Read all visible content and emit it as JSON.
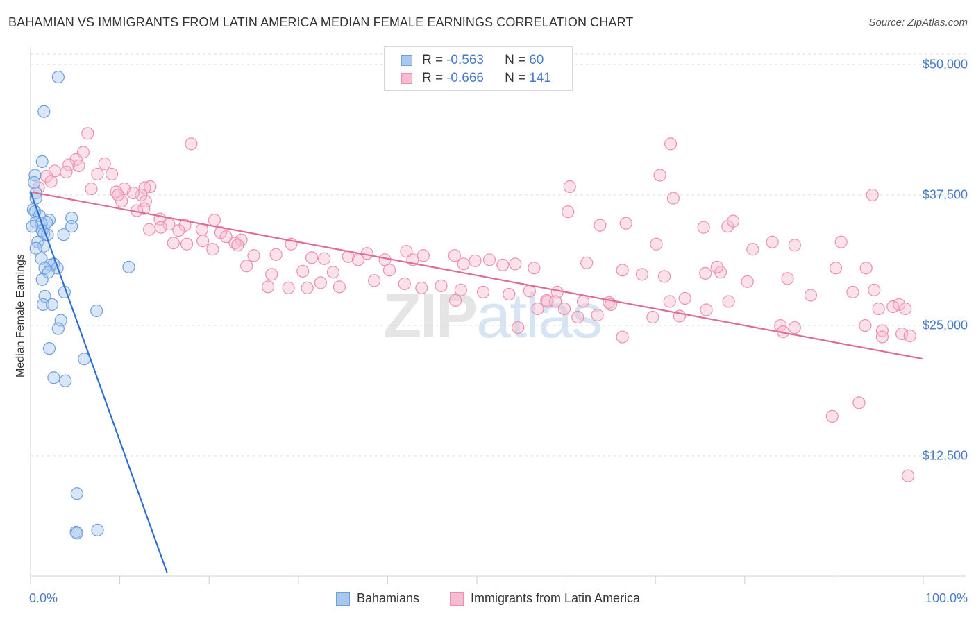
{
  "title": "BAHAMIAN VS IMMIGRANTS FROM LATIN AMERICA MEDIAN FEMALE EARNINGS CORRELATION CHART",
  "source": "Source: ZipAtlas.com",
  "watermark": {
    "zip": "ZIP",
    "atlas": "atlas"
  },
  "legend": {
    "series1": {
      "r_label": "R = ",
      "r_value": "-0.563",
      "n_label": "N = ",
      "n_value": "60"
    },
    "series2": {
      "r_label": "R = ",
      "r_value": "-0.666",
      "n_label": "N = ",
      "n_value": "141"
    }
  },
  "colors": {
    "blue_fill": "#a9c8f0",
    "blue_stroke": "#6d9fe0",
    "blue_line": "#2e6fd6",
    "pink_fill": "#f7bcd0",
    "pink_stroke": "#ee8fb0",
    "pink_line": "#e06b97",
    "tick_text": "#4a7cc8",
    "grid": "#dcdcdc"
  },
  "chart_data": {
    "type": "scatter",
    "title": "BAHAMIAN VS IMMIGRANTS FROM LATIN AMERICA MEDIAN FEMALE EARNINGS CORRELATION CHART",
    "xlabel": "",
    "ylabel": "Median Female Earnings",
    "xlim": [
      0,
      100
    ],
    "ylim": [
      1000,
      51000
    ],
    "x_tick_labels": [
      "0.0%",
      "100.0%"
    ],
    "y_ticks": [
      {
        "value": 12500,
        "label": "$12,500"
      },
      {
        "value": 25000,
        "label": "$25,000"
      },
      {
        "value": 37500,
        "label": "$37,500"
      },
      {
        "value": 50000,
        "label": "$50,000"
      }
    ],
    "series": [
      {
        "name": "Bahamians",
        "trend": {
          "x": [
            0,
            15.3
          ],
          "y": [
            37800,
            1300
          ]
        },
        "points": [
          [
            3.1,
            48800
          ],
          [
            1.5,
            45500
          ],
          [
            1.3,
            40700
          ],
          [
            0.5,
            39400
          ],
          [
            0.4,
            38700
          ],
          [
            0.6,
            37700
          ],
          [
            0.6,
            37200
          ],
          [
            0.3,
            36100
          ],
          [
            0.5,
            35900
          ],
          [
            1.0,
            35500
          ],
          [
            2.1,
            35100
          ],
          [
            0.6,
            34900
          ],
          [
            1.8,
            34900
          ],
          [
            1.2,
            34800
          ],
          [
            0.2,
            34500
          ],
          [
            4.6,
            35300
          ],
          [
            4.6,
            34500
          ],
          [
            1.3,
            34100
          ],
          [
            1.5,
            33800
          ],
          [
            1.9,
            33700
          ],
          [
            3.7,
            33700
          ],
          [
            0.8,
            33000
          ],
          [
            1.5,
            32600
          ],
          [
            0.6,
            32400
          ],
          [
            1.2,
            31400
          ],
          [
            2.6,
            30900
          ],
          [
            2.2,
            30800
          ],
          [
            3.0,
            30500
          ],
          [
            1.6,
            30500
          ],
          [
            2.0,
            30100
          ],
          [
            11.0,
            30600
          ],
          [
            1.3,
            29400
          ],
          [
            3.8,
            28200
          ],
          [
            1.6,
            27800
          ],
          [
            2.4,
            27000
          ],
          [
            1.4,
            27000
          ],
          [
            7.4,
            26400
          ],
          [
            3.4,
            25500
          ],
          [
            3.1,
            24700
          ],
          [
            2.1,
            22800
          ],
          [
            6.0,
            21800
          ],
          [
            2.6,
            20000
          ],
          [
            3.9,
            19700
          ],
          [
            5.2,
            8900
          ],
          [
            5.1,
            5200
          ],
          [
            5.2,
            5100
          ],
          [
            7.5,
            5400
          ]
        ]
      },
      {
        "name": "Immigrants from Latin America",
        "trend": {
          "x": [
            0,
            100
          ],
          "y": [
            37800,
            21800
          ]
        },
        "points": [
          [
            6.4,
            43400
          ],
          [
            5.9,
            41600
          ],
          [
            18.0,
            42400
          ],
          [
            5.1,
            40900
          ],
          [
            8.3,
            40500
          ],
          [
            4.3,
            40400
          ],
          [
            2.7,
            39800
          ],
          [
            4.0,
            39700
          ],
          [
            5.4,
            40300
          ],
          [
            9.1,
            39500
          ],
          [
            7.5,
            39500
          ],
          [
            1.8,
            39300
          ],
          [
            2.3,
            38800
          ],
          [
            0.9,
            38200
          ],
          [
            13.4,
            38300
          ],
          [
            12.8,
            38200
          ],
          [
            10.5,
            38100
          ],
          [
            9.6,
            37800
          ],
          [
            6.8,
            38100
          ],
          [
            12.4,
            37500
          ],
          [
            11.5,
            37700
          ],
          [
            10.2,
            36900
          ],
          [
            12.9,
            36900
          ],
          [
            9.8,
            37500
          ],
          [
            12.7,
            36200
          ],
          [
            11.9,
            36000
          ],
          [
            14.5,
            35200
          ],
          [
            15.5,
            34700
          ],
          [
            14.6,
            34400
          ],
          [
            13.3,
            34200
          ],
          [
            17.3,
            34600
          ],
          [
            16.6,
            34100
          ],
          [
            20.6,
            35100
          ],
          [
            19.2,
            34200
          ],
          [
            21.3,
            33900
          ],
          [
            21.9,
            33500
          ],
          [
            23.6,
            33200
          ],
          [
            22.9,
            32900
          ],
          [
            19.3,
            33100
          ],
          [
            17.5,
            32800
          ],
          [
            16.0,
            32900
          ],
          [
            20.4,
            32300
          ],
          [
            23.2,
            32700
          ],
          [
            27.5,
            31800
          ],
          [
            25.0,
            31700
          ],
          [
            29.2,
            32800
          ],
          [
            31.5,
            31500
          ],
          [
            32.9,
            31400
          ],
          [
            35.6,
            31600
          ],
          [
            36.7,
            31300
          ],
          [
            37.7,
            31900
          ],
          [
            39.7,
            31300
          ],
          [
            42.1,
            32100
          ],
          [
            44.0,
            31700
          ],
          [
            42.8,
            31300
          ],
          [
            47.5,
            31700
          ],
          [
            49.8,
            31200
          ],
          [
            51.4,
            31300
          ],
          [
            52.9,
            30800
          ],
          [
            54.3,
            30900
          ],
          [
            56.4,
            30500
          ],
          [
            48.5,
            30900
          ],
          [
            40.2,
            30300
          ],
          [
            33.9,
            30100
          ],
          [
            30.5,
            30200
          ],
          [
            27.0,
            29900
          ],
          [
            24.2,
            30700
          ],
          [
            26.6,
            28700
          ],
          [
            28.9,
            28600
          ],
          [
            31.0,
            28600
          ],
          [
            32.5,
            29100
          ],
          [
            34.6,
            28700
          ],
          [
            38.5,
            29300
          ],
          [
            41.9,
            29000
          ],
          [
            43.8,
            28600
          ],
          [
            46.0,
            28800
          ],
          [
            48.2,
            28400
          ],
          [
            50.7,
            28200
          ],
          [
            53.6,
            28000
          ],
          [
            55.9,
            28300
          ],
          [
            57.8,
            27400
          ],
          [
            57.9,
            27300
          ],
          [
            59.0,
            28200
          ],
          [
            61.9,
            27300
          ],
          [
            64.8,
            27200
          ],
          [
            66.3,
            30300
          ],
          [
            68.5,
            29900
          ],
          [
            71.0,
            29700
          ],
          [
            75.6,
            30000
          ],
          [
            77.3,
            30100
          ],
          [
            80.3,
            29200
          ],
          [
            84.8,
            29500
          ],
          [
            87.4,
            27900
          ],
          [
            70.1,
            32800
          ],
          [
            62.3,
            31000
          ],
          [
            60.2,
            35900
          ],
          [
            72.0,
            37200
          ],
          [
            75.4,
            34400
          ],
          [
            78.1,
            34500
          ],
          [
            83.1,
            33000
          ],
          [
            76.9,
            30600
          ],
          [
            80.9,
            32300
          ],
          [
            85.6,
            32700
          ],
          [
            90.8,
            33000
          ],
          [
            90.2,
            30500
          ],
          [
            93.6,
            30500
          ],
          [
            94.5,
            28400
          ],
          [
            92.1,
            28200
          ],
          [
            75.7,
            26500
          ],
          [
            78.2,
            27300
          ],
          [
            69.7,
            25800
          ],
          [
            71.6,
            27300
          ],
          [
            73.3,
            27600
          ],
          [
            66.3,
            23900
          ],
          [
            58.8,
            27300
          ],
          [
            59.8,
            26600
          ],
          [
            61.3,
            25800
          ],
          [
            63.5,
            26000
          ],
          [
            65.0,
            27000
          ],
          [
            54.6,
            24800
          ],
          [
            47.6,
            27400
          ],
          [
            56.8,
            26600
          ],
          [
            60.4,
            38300
          ],
          [
            66.7,
            34800
          ],
          [
            63.8,
            34600
          ],
          [
            72.7,
            25900
          ],
          [
            84.0,
            25000
          ],
          [
            84.3,
            24400
          ],
          [
            85.6,
            24800
          ],
          [
            93.5,
            25000
          ],
          [
            95.4,
            24500
          ],
          [
            96.6,
            26800
          ],
          [
            97.3,
            27000
          ],
          [
            97.6,
            24200
          ],
          [
            98.5,
            24000
          ],
          [
            98.0,
            26600
          ],
          [
            70.5,
            39400
          ],
          [
            71.7,
            42400
          ],
          [
            78.7,
            35000
          ],
          [
            92.8,
            17600
          ],
          [
            89.8,
            16300
          ],
          [
            94.3,
            37500
          ],
          [
            95.4,
            23900
          ],
          [
            95.0,
            26600
          ],
          [
            98.3,
            10600
          ]
        ]
      }
    ]
  }
}
